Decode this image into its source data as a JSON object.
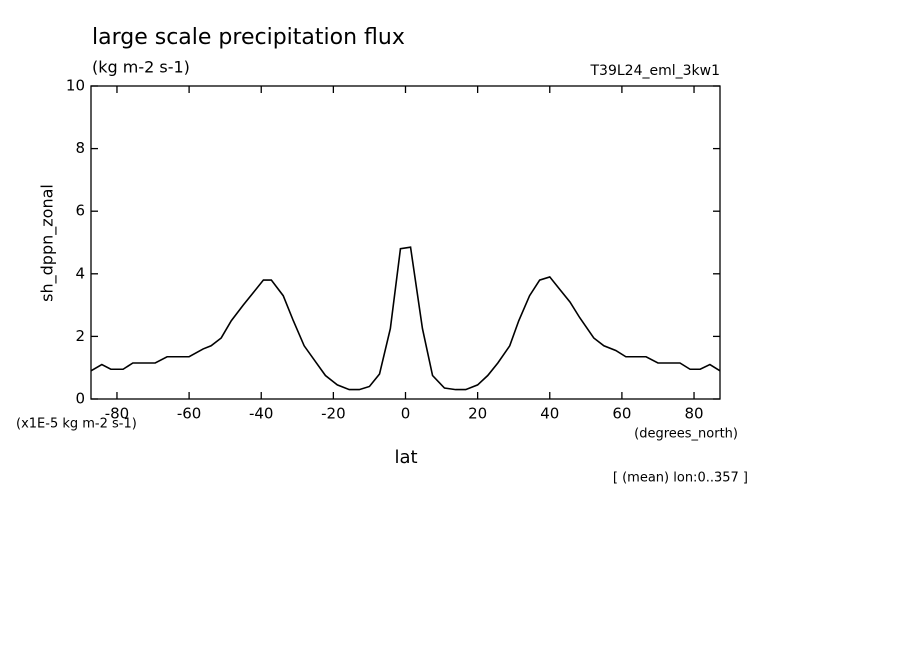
{
  "chart_data": {
    "type": "line",
    "title": "large scale precipitation flux",
    "subtitle": "(kg m-2 s-1)",
    "run_label": "T39L24_eml_3kw1",
    "y_label": "sh_dppn_zonal",
    "y_scale_note": "(x1E-5 kg m-2 s-1)",
    "x_units": "(degrees_north)",
    "x_label": "lat",
    "footnote": "[ (mean) lon:0..357 ]",
    "x": [
      -87.2,
      -84.2,
      -81.7,
      -78.3,
      -75.6,
      -69.4,
      -66.1,
      -60.0,
      -56.1,
      -53.9,
      -51.1,
      -48.3,
      -45.0,
      -42.2,
      -39.4,
      -37.2,
      -33.9,
      -31.1,
      -28.1,
      -25.0,
      -22.2,
      -18.9,
      -15.6,
      -12.8,
      -10.0,
      -7.2,
      -4.2,
      -1.4,
      1.4,
      4.7,
      7.5,
      10.8,
      13.9,
      16.7,
      20.0,
      22.8,
      25.6,
      28.9,
      31.4,
      34.4,
      37.2,
      40.0,
      42.8,
      45.6,
      48.3,
      52.2,
      55.0,
      58.3,
      61.1,
      66.7,
      70.0,
      76.1,
      78.9,
      81.7,
      84.4,
      87.2
    ],
    "series": [
      {
        "color": "#000000",
        "values": [
          0.9,
          1.1,
          0.95,
          0.95,
          1.15,
          1.15,
          1.35,
          1.35,
          1.6,
          1.7,
          1.95,
          2.5,
          3.0,
          3.4,
          3.8,
          3.8,
          3.3,
          2.5,
          1.7,
          1.2,
          0.75,
          0.45,
          0.3,
          0.3,
          0.4,
          0.8,
          2.25,
          4.8,
          4.85,
          2.25,
          0.75,
          0.35,
          0.3,
          0.3,
          0.45,
          0.75,
          1.15,
          1.7,
          2.5,
          3.3,
          3.8,
          3.9,
          3.5,
          3.1,
          2.6,
          1.95,
          1.7,
          1.55,
          1.35,
          1.35,
          1.15,
          1.15,
          0.95,
          0.95,
          1.1,
          0.9
        ]
      }
    ],
    "xlim": [
      -87.2,
      87.2
    ],
    "xticks": [
      -80,
      -60,
      -40,
      -20,
      0,
      20,
      40,
      60,
      80
    ],
    "ylim": [
      0,
      10
    ],
    "yticks": [
      0,
      2,
      4,
      6,
      8,
      10
    ],
    "grid": false
  }
}
